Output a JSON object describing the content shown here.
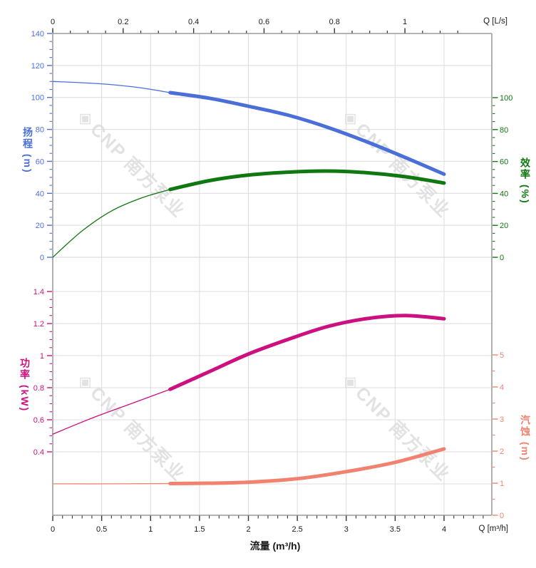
{
  "watermark": {
    "logo_glyph": "◈",
    "text": "CNP 南方泵业"
  },
  "chart_data": {
    "type": "line",
    "x_axis_bottom": {
      "label": "流量 (m³/h)",
      "unit_label": "Q [m³/h]",
      "unit": "m³/h",
      "ticks": [
        0,
        0.5,
        1,
        1.5,
        2,
        2.5,
        3,
        3.5,
        4
      ],
      "minor_step": 0.1,
      "range": [
        0,
        4.49
      ]
    },
    "x_axis_top": {
      "unit_label": "Q [L/s]",
      "unit": "L/s",
      "ticks": [
        0,
        0.2,
        0.4,
        0.6,
        0.8,
        1
      ],
      "minor_step": 0.05,
      "range": [
        0,
        1.247
      ]
    },
    "y_axes": {
      "head": {
        "title": "扬程 (m)",
        "unit": "m",
        "color": "#4a6fd9",
        "ticks": [
          0,
          20,
          40,
          60,
          80,
          100,
          120,
          140
        ],
        "minor_step": 5,
        "range": [
          0,
          140
        ]
      },
      "efficiency": {
        "title": "效率 (%)",
        "unit": "%",
        "color": "#107810",
        "ticks": [
          0,
          20,
          40,
          60,
          80,
          100
        ],
        "minor_step": 5,
        "range": [
          0,
          100
        ]
      },
      "power": {
        "title": "功率 (kW)",
        "unit": "kW",
        "color": "#cc1080",
        "ticks": [
          0.4,
          0.6,
          0.8,
          1,
          1.2,
          1.4
        ],
        "minor_step": 0.05,
        "range": [
          0.4,
          1.4
        ]
      },
      "npsh": {
        "title": "汽蚀 (m)",
        "unit": "m",
        "color": "#f28270",
        "ticks": [
          0,
          1,
          2,
          3,
          4,
          5
        ],
        "minor_step": 0.5,
        "range": [
          0,
          5
        ]
      }
    },
    "grid": {
      "vertical_step_m3h": 0.5,
      "on": true
    },
    "series": [
      {
        "name": "head",
        "axis": "head",
        "color": "#4a6fd9",
        "x_unit": "m³/h",
        "thin": [
          [
            0,
            110
          ],
          [
            0.3,
            109.2
          ],
          [
            0.6,
            108
          ],
          [
            0.9,
            106
          ],
          [
            1.2,
            103
          ]
        ],
        "thick": [
          [
            1.2,
            103
          ],
          [
            1.6,
            99.5
          ],
          [
            2,
            94.5
          ],
          [
            2.4,
            89
          ],
          [
            2.8,
            81.5
          ],
          [
            3.2,
            72.5
          ],
          [
            3.6,
            62.5
          ],
          [
            4,
            52
          ]
        ]
      },
      {
        "name": "efficiency",
        "axis": "efficiency",
        "color": "#107810",
        "x_unit": "m³/h",
        "thin": [
          [
            0,
            0
          ],
          [
            0.3,
            16.5
          ],
          [
            0.6,
            29
          ],
          [
            0.9,
            37
          ],
          [
            1.2,
            42.5
          ]
        ],
        "thick": [
          [
            1.2,
            42.5
          ],
          [
            1.6,
            48
          ],
          [
            2,
            51.5
          ],
          [
            2.4,
            53.3
          ],
          [
            2.8,
            54
          ],
          [
            3.2,
            53
          ],
          [
            3.6,
            50.5
          ],
          [
            4,
            46.5
          ]
        ]
      },
      {
        "name": "power",
        "axis": "power",
        "color": "#cc1080",
        "x_unit": "m³/h",
        "thin": [
          [
            0,
            0.51
          ],
          [
            0.4,
            0.61
          ],
          [
            0.8,
            0.7
          ],
          [
            1.2,
            0.79
          ]
        ],
        "thick": [
          [
            1.2,
            0.79
          ],
          [
            1.6,
            0.9
          ],
          [
            2,
            1.01
          ],
          [
            2.4,
            1.1
          ],
          [
            2.8,
            1.18
          ],
          [
            3.2,
            1.23
          ],
          [
            3.6,
            1.25
          ],
          [
            4,
            1.23
          ]
        ]
      },
      {
        "name": "npsh",
        "axis": "npsh",
        "color": "#f28270",
        "x_unit": "m³/h",
        "thin": [
          [
            0,
            0.98
          ],
          [
            0.6,
            0.98
          ],
          [
            1.2,
            0.99
          ]
        ],
        "thick": [
          [
            1.2,
            0.99
          ],
          [
            1.6,
            1
          ],
          [
            2,
            1.03
          ],
          [
            2.5,
            1.14
          ],
          [
            3,
            1.36
          ],
          [
            3.5,
            1.65
          ],
          [
            4,
            2.07
          ]
        ]
      }
    ]
  }
}
